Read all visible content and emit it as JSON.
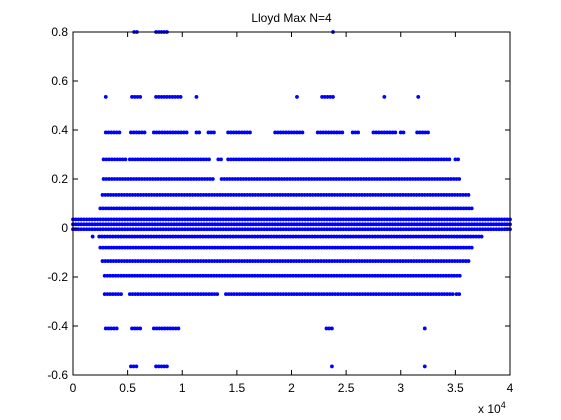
{
  "chart_data": {
    "type": "scatter",
    "title": "Lloyd Max N=4",
    "xlabel": "",
    "ylabel": "",
    "xlim": [
      0,
      40000
    ],
    "ylim": [
      -0.6,
      0.8
    ],
    "x_exponent_label": "x 10",
    "x_exponent_power": "4",
    "x_ticks": [
      {
        "value": 0,
        "label": "0"
      },
      {
        "value": 5000,
        "label": "0.5"
      },
      {
        "value": 10000,
        "label": "1"
      },
      {
        "value": 15000,
        "label": "1.5"
      },
      {
        "value": 20000,
        "label": "2"
      },
      {
        "value": 25000,
        "label": "2.5"
      },
      {
        "value": 30000,
        "label": "3"
      },
      {
        "value": 35000,
        "label": "3.5"
      },
      {
        "value": 40000,
        "label": "4"
      }
    ],
    "y_ticks": [
      {
        "value": -0.6,
        "label": "-0.6"
      },
      {
        "value": -0.4,
        "label": "-0.4"
      },
      {
        "value": -0.2,
        "label": "-0.2"
      },
      {
        "value": 0,
        "label": "0"
      },
      {
        "value": 0.2,
        "label": "0.2"
      },
      {
        "value": 0.4,
        "label": "0.4"
      },
      {
        "value": 0.6,
        "label": "0.6"
      },
      {
        "value": 0.8,
        "label": "0.8"
      }
    ],
    "grid": false,
    "marker_color": "#0000ff",
    "levels": [
      {
        "y": 0.8,
        "segments": [
          [
            5600,
            5900
          ],
          [
            7600,
            8800
          ],
          [
            23800,
            24000
          ]
        ]
      },
      {
        "y": 0.535,
        "segments": [
          [
            3000,
            3200
          ],
          [
            5400,
            6200
          ],
          [
            7600,
            10000
          ],
          [
            11300,
            11500
          ],
          [
            20500,
            20700
          ],
          [
            22800,
            23800
          ],
          [
            28500,
            28700
          ],
          [
            31600,
            31800
          ]
        ]
      },
      {
        "y": 0.39,
        "segments": [
          [
            3000,
            4300
          ],
          [
            5300,
            6600
          ],
          [
            7400,
            10500
          ],
          [
            11300,
            11700
          ],
          [
            12400,
            12900
          ],
          [
            14200,
            16300
          ],
          [
            18500,
            21200
          ],
          [
            22400,
            24700
          ],
          [
            25600,
            26300
          ],
          [
            27500,
            29500
          ],
          [
            30000,
            30400
          ],
          [
            31500,
            32600
          ]
        ]
      },
      {
        "y": 0.28,
        "segments": [
          [
            2800,
            4800
          ],
          [
            5200,
            12600
          ],
          [
            13300,
            13600
          ],
          [
            14200,
            34500
          ],
          [
            35000,
            35400
          ]
        ]
      },
      {
        "y": 0.2,
        "segments": [
          [
            2800,
            12800
          ],
          [
            13600,
            35500
          ]
        ]
      },
      {
        "y": 0.135,
        "segments": [
          [
            2700,
            36200
          ]
        ]
      },
      {
        "y": 0.08,
        "segments": [
          [
            2500,
            36500
          ]
        ]
      },
      {
        "y": 0.035,
        "segments": [
          [
            0,
            40000
          ]
        ]
      },
      {
        "y": 0.015,
        "segments": [
          [
            0,
            40000
          ]
        ]
      },
      {
        "y": -0.005,
        "segments": [
          [
            0,
            40000
          ]
        ]
      },
      {
        "y": -0.035,
        "segments": [
          [
            1800,
            1900
          ],
          [
            2400,
            37500
          ]
        ]
      },
      {
        "y": -0.08,
        "segments": [
          [
            2500,
            36700
          ]
        ]
      },
      {
        "y": -0.135,
        "segments": [
          [
            2700,
            36300
          ]
        ]
      },
      {
        "y": -0.195,
        "segments": [
          [
            2900,
            35600
          ]
        ]
      },
      {
        "y": -0.27,
        "segments": [
          [
            2900,
            4600
          ],
          [
            5200,
            13400
          ],
          [
            14000,
            34800
          ],
          [
            35100,
            35400
          ]
        ]
      },
      {
        "y": -0.41,
        "segments": [
          [
            3000,
            4200
          ],
          [
            5400,
            6200
          ],
          [
            7400,
            9800
          ],
          [
            23200,
            23900
          ],
          [
            32200,
            32400
          ]
        ]
      },
      {
        "y": -0.565,
        "segments": [
          [
            5300,
            6000
          ],
          [
            7600,
            8700
          ],
          [
            23700,
            23900
          ],
          [
            32200,
            32300
          ]
        ]
      }
    ]
  }
}
